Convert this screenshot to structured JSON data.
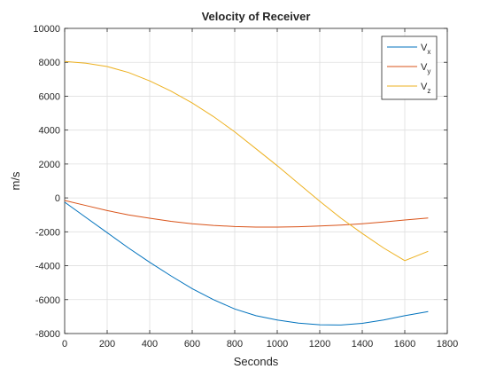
{
  "chart_data": {
    "type": "line",
    "title": "Velocity of Receiver",
    "xlabel": "Seconds",
    "ylabel": "m/s",
    "xlim": [
      0,
      1800
    ],
    "ylim": [
      -8000,
      10000
    ],
    "xticks": [
      0,
      200,
      400,
      600,
      800,
      1000,
      1200,
      1400,
      1600,
      1800
    ],
    "yticks": [
      -8000,
      -6000,
      -4000,
      -2000,
      0,
      2000,
      4000,
      6000,
      8000,
      10000
    ],
    "grid": true,
    "legend_position": "top-right",
    "x": [
      0,
      100,
      200,
      300,
      400,
      500,
      600,
      700,
      800,
      900,
      1000,
      1100,
      1200,
      1300,
      1400,
      1500,
      1600,
      1710
    ],
    "series": [
      {
        "name": "V",
        "subscript": "x",
        "color": "#0072BD",
        "values": [
          -250,
          -1150,
          -2050,
          -2950,
          -3800,
          -4600,
          -5350,
          -6000,
          -6550,
          -6950,
          -7200,
          -7380,
          -7480,
          -7500,
          -7400,
          -7200,
          -6950,
          -6700
        ]
      },
      {
        "name": "V",
        "subscript": "y",
        "color": "#D95319",
        "values": [
          -150,
          -450,
          -750,
          -1000,
          -1200,
          -1380,
          -1520,
          -1620,
          -1690,
          -1720,
          -1720,
          -1700,
          -1660,
          -1600,
          -1520,
          -1420,
          -1300,
          -1180
        ]
      },
      {
        "name": "V",
        "subscript": "z",
        "color": "#EDB120",
        "values": [
          8050,
          7950,
          7750,
          7400,
          6900,
          6300,
          5600,
          4800,
          3900,
          2900,
          1900,
          850,
          -200,
          -1200,
          -2100,
          -2950,
          -3700,
          -3150
        ]
      }
    ]
  }
}
